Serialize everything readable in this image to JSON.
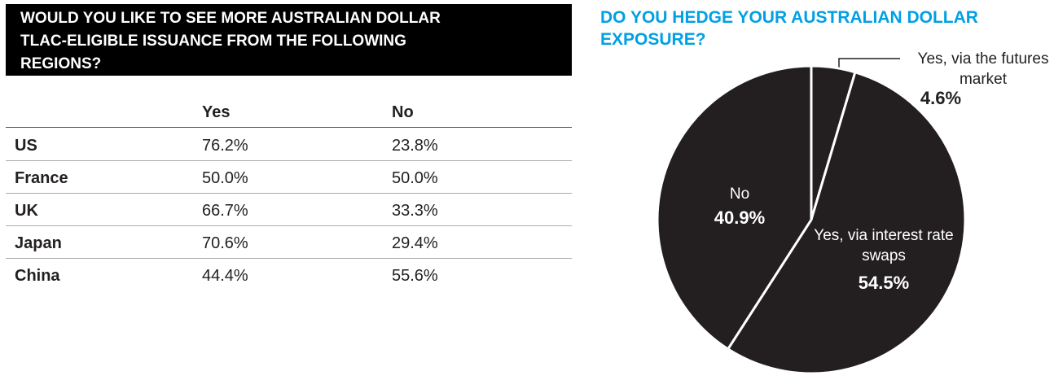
{
  "table": {
    "title": "WOULD YOU LIKE TO SEE MORE AUSTRALIAN DOLLAR TLAC-ELIGIBLE ISSUANCE FROM THE FOLLOWING REGIONS?",
    "header": [
      "Yes",
      "No"
    ],
    "rows": [
      [
        "US",
        "76.2%",
        "23.8%"
      ],
      [
        "France",
        "50.0%",
        "50.0%"
      ],
      [
        "UK",
        "66.7%",
        "33.3%"
      ],
      [
        "Japan",
        "70.6%",
        "29.4%"
      ],
      [
        "China",
        "44.4%",
        "55.6%"
      ]
    ]
  },
  "chart_data": {
    "type": "pie",
    "title": "DO YOU HEDGE YOUR AUSTRALIAN DOLLAR EXPOSURE?",
    "categories": [
      "Yes, via the futures market",
      "Yes, via interest rate swaps",
      "No"
    ],
    "values": [
      4.6,
      54.5,
      40.9
    ],
    "value_labels": [
      "4.6%",
      "54.5%",
      "40.9%"
    ],
    "color": "#231f20"
  }
}
